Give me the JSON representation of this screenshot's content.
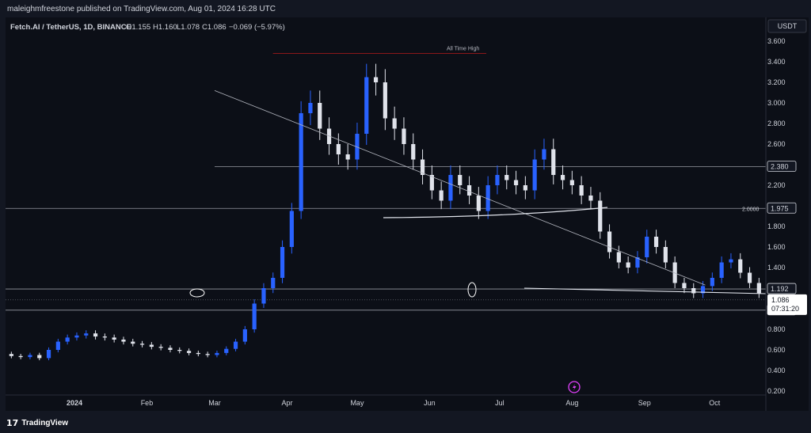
{
  "header": {
    "published_text": "maleighmfreestone published on TradingView.com, Aug 01, 2024 16:28 UTC"
  },
  "legend": {
    "symbol": "Fetch.AI / TetherUS, 1D, BINANCE",
    "open": "O1.155",
    "high": "H1.160",
    "low": "L1.078",
    "close": "C1.086",
    "change": "−0.069 (−5.97%)"
  },
  "currency": "USDT",
  "footer": {
    "brand": "TradingView",
    "logo_mark": "17"
  },
  "colors": {
    "background": "#0c0f17",
    "up": "#2962ff",
    "down": "#e0e3eb",
    "grid": "#1c2030",
    "trendline": "#b2b5be"
  },
  "annotations": {
    "all_time_high_label": "All Time High",
    "fib_label": "2.0000",
    "price_tags": [
      "2.380",
      "1.975",
      "1.192",
      "0.986"
    ],
    "last_price": "1.086",
    "countdown": "07:31:20"
  },
  "chart_data": {
    "type": "candlestick",
    "title": "Fetch.AI / TetherUS, 1D, BINANCE",
    "xlabel": "",
    "ylabel": "",
    "ylim": [
      0.2,
      3.75
    ],
    "x_ticks": [
      "2024",
      "Feb",
      "Mar",
      "Apr",
      "May",
      "Jun",
      "Jul",
      "Aug",
      "Sep",
      "Oct"
    ],
    "x_tick_dates": [
      "2024-01-01",
      "2024-02-01",
      "2024-03-01",
      "2024-04-01",
      "2024-05-01",
      "2024-06-01",
      "2024-07-01",
      "2024-08-01",
      "2024-09-01",
      "2024-10-01"
    ],
    "y_ticks": [
      3.6,
      3.4,
      3.2,
      3.0,
      2.8,
      2.6,
      2.4,
      2.2,
      2.0,
      1.8,
      1.6,
      1.4,
      1.2,
      1.0,
      0.8,
      0.6,
      0.4,
      0.2
    ],
    "y_tick_labels": [
      "3.600",
      "3.400",
      "3.200",
      "3.000",
      "2.800",
      "2.600",
      "2.400",
      "2.200",
      "2.000",
      "1.800",
      "1.600",
      "1.400",
      "1.200",
      "1.000",
      "0.800",
      "0.600",
      "0.400",
      "0.200"
    ],
    "series_close": {
      "start": "2023-12-01",
      "step_days": 4,
      "values": [
        0.56,
        0.54,
        0.53,
        0.55,
        0.52,
        0.6,
        0.68,
        0.72,
        0.74,
        0.76,
        0.73,
        0.72,
        0.7,
        0.68,
        0.66,
        0.65,
        0.63,
        0.62,
        0.6,
        0.59,
        0.57,
        0.56,
        0.55,
        0.57,
        0.61,
        0.68,
        0.8,
        1.05,
        1.2,
        1.3,
        1.6,
        1.95,
        2.9,
        3.0,
        2.75,
        2.6,
        2.5,
        2.45,
        2.7,
        3.25,
        3.2,
        2.85,
        2.75,
        2.6,
        2.45,
        2.3,
        2.15,
        2.05,
        2.3,
        2.2,
        2.1,
        1.95,
        2.2,
        2.3,
        2.25,
        2.2,
        2.15,
        2.45,
        2.55,
        2.3,
        2.25,
        2.2,
        2.1,
        2.05,
        1.75,
        1.55,
        1.45,
        1.4,
        1.5,
        1.7,
        1.6,
        1.45,
        1.25,
        1.2,
        1.15,
        1.22,
        1.3,
        1.45,
        1.48,
        1.35,
        1.25,
        1.15,
        1.086
      ]
    },
    "levels": [
      {
        "label": "2.380",
        "value": 2.38
      },
      {
        "label": "1.975",
        "value": 1.975,
        "annotation": "2.0000"
      },
      {
        "label": "1.192",
        "value": 1.192
      },
      {
        "label": "0.986",
        "value": 0.986
      }
    ],
    "all_time_high": {
      "label": "All Time High",
      "value": 3.48,
      "date": "2024-03-28"
    },
    "trendline": {
      "from": {
        "date": "2024-03-01",
        "value": 3.12
      },
      "to": {
        "date": "2024-09-27",
        "value": 1.23
      }
    },
    "last_price": {
      "value": 1.086,
      "countdown": "07:31:20"
    },
    "grid": false,
    "legend": "top-left"
  }
}
